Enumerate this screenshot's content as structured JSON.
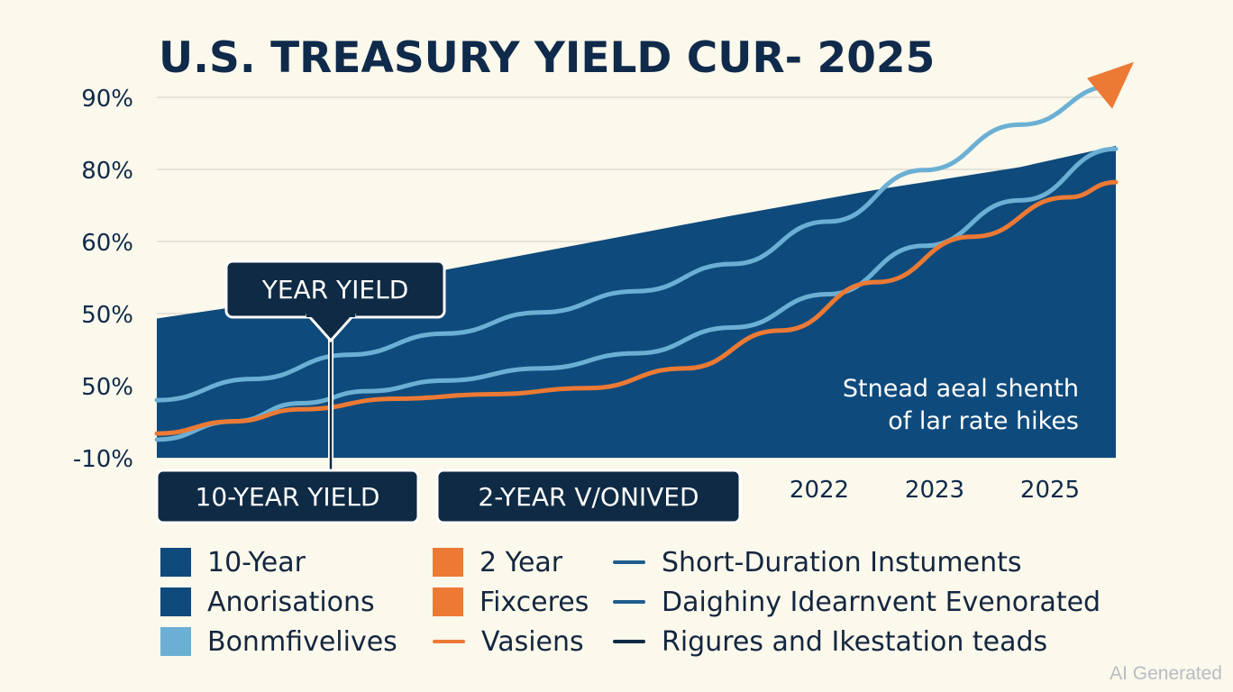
{
  "colors": {
    "background": "#fbf8ec",
    "navy": "#0f4a7c",
    "dark_navy": "#0f2a44",
    "light_blue": "#6bb0d4",
    "orange": "#ec7a34",
    "grid": "#d9d6cc",
    "text": "#0f2a4a"
  },
  "chart_data": {
    "type": "area",
    "title": "U.S. TREASURY YIELD CUR- 2025",
    "y_tick_labels": [
      "90%",
      "80%",
      "60%",
      "50%",
      "50%",
      "-10%"
    ],
    "x_tick_labels": [
      "2022",
      "2023",
      "2025"
    ],
    "grid": "horizontal",
    "series": [
      {
        "kind": "area",
        "color": "#0f4a7c",
        "points": [
          [
            0.0,
            4.6
          ],
          [
            0.15,
            5.3
          ],
          [
            0.3,
            6.2
          ],
          [
            0.45,
            7.1
          ],
          [
            0.6,
            8.0
          ],
          [
            0.75,
            8.85
          ],
          [
            0.9,
            9.6
          ],
          [
            1.0,
            10.3
          ]
        ]
      },
      {
        "kind": "line",
        "color": "#6bb0d4",
        "points": [
          [
            0.0,
            1.9
          ],
          [
            0.1,
            2.6
          ],
          [
            0.2,
            3.4
          ],
          [
            0.3,
            4.1
          ],
          [
            0.4,
            4.8
          ],
          [
            0.5,
            5.5
          ],
          [
            0.6,
            6.4
          ],
          [
            0.7,
            7.8
          ],
          [
            0.8,
            9.5
          ],
          [
            0.9,
            11.0
          ],
          [
            1.0,
            12.3
          ]
        ]
      },
      {
        "kind": "line",
        "color": "#6bb0d4",
        "points": [
          [
            0.0,
            0.6
          ],
          [
            0.08,
            1.2
          ],
          [
            0.15,
            1.8
          ],
          [
            0.22,
            2.2
          ],
          [
            0.3,
            2.55
          ],
          [
            0.4,
            2.95
          ],
          [
            0.5,
            3.45
          ],
          [
            0.6,
            4.3
          ],
          [
            0.7,
            5.4
          ],
          [
            0.8,
            7.0
          ],
          [
            0.9,
            8.5
          ],
          [
            1.0,
            10.2
          ]
        ]
      },
      {
        "kind": "line",
        "color": "#ec7a34",
        "points": [
          [
            0.0,
            0.8
          ],
          [
            0.08,
            1.2
          ],
          [
            0.15,
            1.6
          ],
          [
            0.25,
            1.95
          ],
          [
            0.35,
            2.1
          ],
          [
            0.45,
            2.3
          ],
          [
            0.55,
            2.95
          ],
          [
            0.65,
            4.2
          ],
          [
            0.75,
            5.8
          ],
          [
            0.85,
            7.3
          ],
          [
            0.95,
            8.6
          ],
          [
            1.0,
            9.1
          ]
        ]
      }
    ],
    "callouts": {
      "year_yield": "YEAR YIELD",
      "ten_year": "10-YEAR YIELD",
      "two_year": "2-YEAR V/ONIVED"
    },
    "annotation": [
      "Stnead aeal shenth",
      "of lar rate hikes"
    ]
  },
  "legend": {
    "items": [
      {
        "label": "10-Year",
        "swatch": "box",
        "color": "#0f4a7c"
      },
      {
        "label": "Anorisations",
        "swatch": "box",
        "color": "#0f4a7c"
      },
      {
        "label": "Bonmfivelives",
        "swatch": "box",
        "color": "#6bb0d4"
      },
      {
        "label": "2 Year",
        "swatch": "box",
        "color": "#ec7a34"
      },
      {
        "label": "Fixceres",
        "swatch": "box",
        "color": "#ec7a34"
      },
      {
        "label": "Vasiens",
        "swatch": "line",
        "color": "#ec7a34"
      },
      {
        "label": "Short-Duration Instuments",
        "swatch": "line",
        "color": "#1f5d8f"
      },
      {
        "label": "Daighiny Idearnvent Evenorated",
        "swatch": "line",
        "color": "#1f5d8f"
      },
      {
        "label": "Rigures and Ikestation teads",
        "swatch": "line",
        "color": "#0f2a44"
      }
    ]
  },
  "watermark": "AI Generated"
}
